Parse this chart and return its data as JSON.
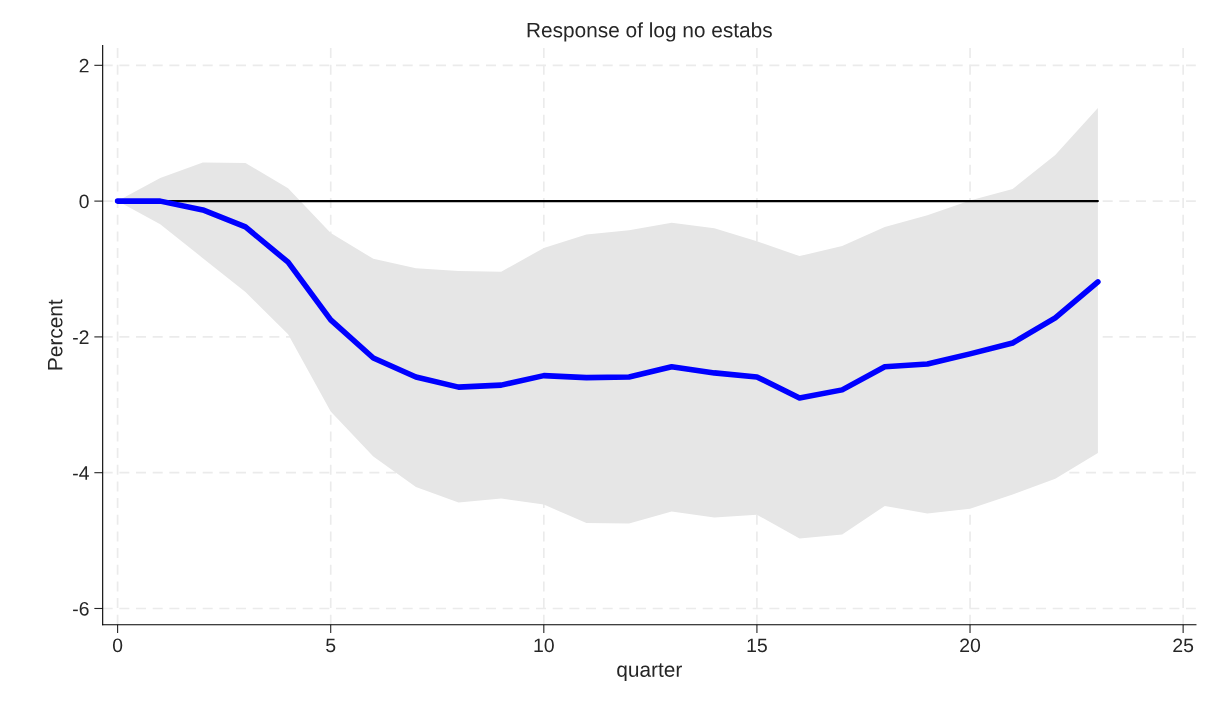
{
  "chart_data": {
    "type": "line",
    "title": "Response of log no estabs",
    "xlabel": "quarter",
    "ylabel": "Percent",
    "x": [
      0,
      1,
      2,
      3,
      4,
      5,
      6,
      7,
      8,
      9,
      10,
      11,
      12,
      13,
      14,
      15,
      16,
      17,
      18,
      19,
      20,
      21,
      22,
      23
    ],
    "series": [
      {
        "color": "#000000",
        "values": [
          0,
          0,
          0,
          0,
          0,
          0,
          0,
          0,
          0,
          0,
          0,
          0,
          0,
          0,
          0,
          0,
          0,
          0,
          0,
          0,
          0,
          0,
          0,
          0
        ]
      },
      {
        "color": "#0000ff",
        "values": [
          0,
          0,
          -0.13,
          -0.38,
          -0.9,
          -1.75,
          -2.31,
          -2.59,
          -2.74,
          -2.71,
          -2.57,
          -2.6,
          -2.59,
          -2.44,
          -2.53,
          -2.59,
          -2.9,
          -2.78,
          -2.44,
          -2.4,
          -2.25,
          -2.09,
          -1.72,
          -1.19
        ],
        "lower": [
          0,
          -0.34,
          -0.84,
          -1.34,
          -1.96,
          -3.1,
          -3.76,
          -4.21,
          -4.44,
          -4.38,
          -4.47,
          -4.74,
          -4.75,
          -4.57,
          -4.66,
          -4.62,
          -4.97,
          -4.91,
          -4.49,
          -4.6,
          -4.53,
          -4.32,
          -4.09,
          -3.71
        ],
        "upper": [
          0,
          0.34,
          0.57,
          0.56,
          0.19,
          -0.47,
          -0.85,
          -0.99,
          -1.03,
          -1.04,
          -0.69,
          -0.49,
          -0.43,
          -0.32,
          -0.4,
          -0.59,
          -0.81,
          -0.66,
          -0.38,
          -0.21,
          0.01,
          0.18,
          0.68,
          1.37
        ]
      }
    ],
    "xlim": [
      -0.35,
      25.3
    ],
    "ylim": [
      -6.24,
      2.29
    ],
    "xticks": [
      0,
      5,
      10,
      15,
      20,
      25
    ],
    "yticks": [
      -6,
      -4,
      -2,
      0,
      2
    ],
    "grid": true,
    "line_style": "solid",
    "marker": "none"
  }
}
